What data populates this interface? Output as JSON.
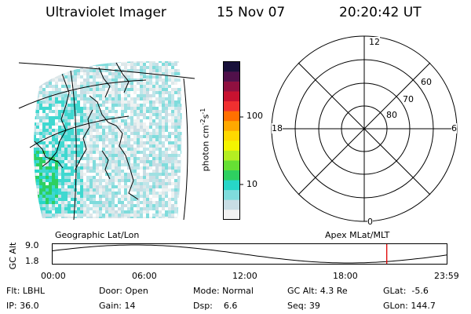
{
  "header": {
    "title": "Ultraviolet Imager",
    "date": "15 Nov 07",
    "time": "20:20:42 UT"
  },
  "colorbar": {
    "label": "photon cm",
    "label_sup1": "-2",
    "label_mid": "s",
    "label_sup2": "-1",
    "ticks": [
      {
        "label": "100",
        "value": 100
      },
      {
        "label": "10",
        "value": 10
      }
    ],
    "colors": [
      "#f2f2f2",
      "#c8dde4",
      "#7fdcdc",
      "#27d6c8",
      "#2ed060",
      "#66e034",
      "#b4ee22",
      "#f4f400",
      "#ffd800",
      "#ffa800",
      "#ff7000",
      "#f03030",
      "#c81230",
      "#901040",
      "#50104a",
      "#18103a"
    ]
  },
  "polar_plot": {
    "hour_labels": {
      "top": "12",
      "left": "18",
      "right": "6",
      "bottom": "0"
    },
    "lat_labels": [
      "60",
      "70",
      "80"
    ]
  },
  "timeline": {
    "y_axis_label": "GC Alt",
    "y_max_label": "9.0",
    "y_min_label": "1.8",
    "left_title": "Geographic Lat/Lon",
    "right_title": "Apex MLat/MLT",
    "time_ticks": [
      "00:00",
      "06:00",
      "12:00",
      "18:00",
      "23:59"
    ],
    "current_time_fraction": 0.8473,
    "marker_color": "#e00000"
  },
  "status": {
    "flt": "Flt: LBHL",
    "door": "Door: Open",
    "mode": "Mode: Normal",
    "gc_alt": "GC Alt: 4.3 Re",
    "glat": "GLat:  -5.6",
    "ip": "IP: 36.0",
    "gain": "Gain: 14",
    "dsp": "Dsp:    6.6",
    "seq": "Seq: 39",
    "glon": "GLon: 144.7"
  }
}
